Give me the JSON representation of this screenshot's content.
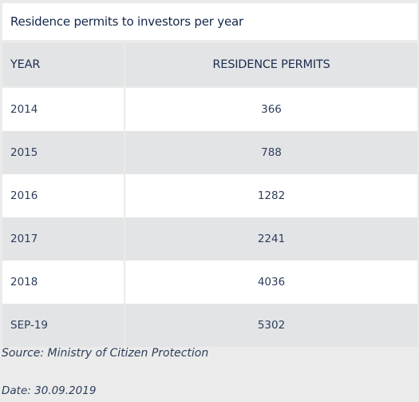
{
  "chart_data": {
    "type": "table",
    "title": "Residence permits to investors per year",
    "columns": [
      "YEAR",
      "RESIDENCE PERMITS"
    ],
    "rows": [
      [
        "2014",
        "366"
      ],
      [
        "2015",
        "788"
      ],
      [
        "2016",
        "1282"
      ],
      [
        "2017",
        "2241"
      ],
      [
        "2018",
        "4036"
      ],
      [
        "SEP-19",
        "5302"
      ]
    ]
  },
  "source": "Source: Ministry of Citizen Protection",
  "date": "Date: 30.09.2019"
}
